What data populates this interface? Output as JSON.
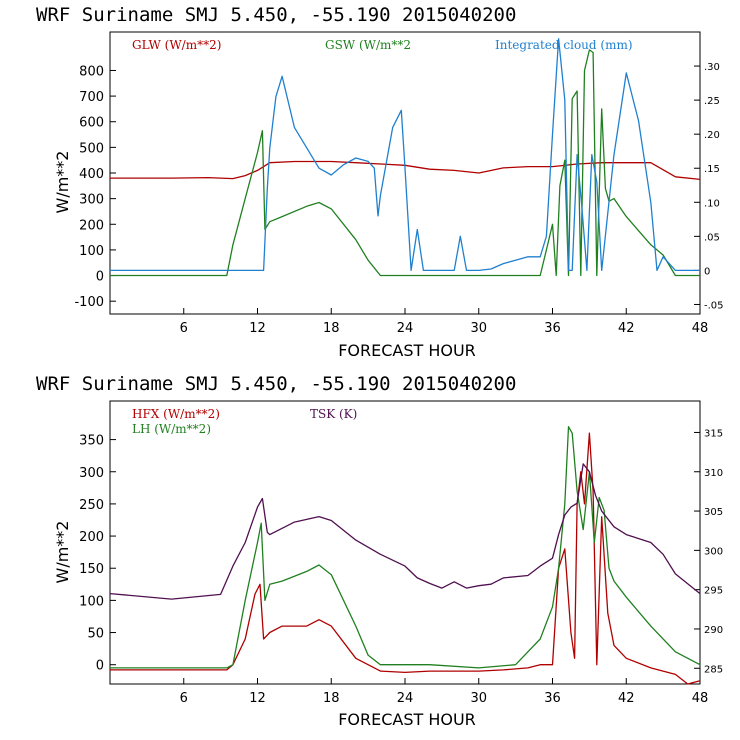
{
  "chart_data": [
    {
      "type": "line",
      "title": "WRF   Suriname SMJ   5.450, -55.190  2015040200",
      "xlabel": "FORECAST HOUR",
      "ylabel": "W/m**2",
      "xlim": [
        0,
        48
      ],
      "ylim": [
        -150,
        950
      ],
      "ylim_right": [
        -0.064,
        0.35
      ],
      "x_ticks": [
        6,
        12,
        18,
        24,
        30,
        36,
        42,
        48
      ],
      "y_ticks": [
        -100,
        0,
        100,
        200,
        300,
        400,
        500,
        600,
        700,
        800
      ],
      "y_ticks_right": [
        -0.05,
        0,
        0.05,
        0.1,
        0.15,
        0.2,
        0.25,
        0.3
      ],
      "y_tick_labels_right": [
        "-.05",
        "0",
        ".05",
        ".10",
        ".15",
        ".20",
        ".25",
        ".30"
      ],
      "grid": false,
      "legend": "top",
      "series": [
        {
          "name": "GLW (W/m**2",
          "color": "#b00000",
          "axis": "left",
          "x": [
            0,
            5,
            8,
            10,
            11,
            12,
            13,
            15,
            18,
            20,
            22,
            24,
            26,
            28,
            30,
            32,
            34,
            36,
            38,
            40,
            42,
            44,
            46,
            48
          ],
          "y": [
            380,
            380,
            382,
            378,
            390,
            410,
            440,
            445,
            445,
            440,
            435,
            430,
            415,
            410,
            400,
            420,
            425,
            425,
            435,
            440,
            440,
            440,
            385,
            375
          ]
        },
        {
          "name": "GSW (W/m**2",
          "color": "#208020",
          "axis": "left",
          "x": [
            0,
            9.5,
            10,
            11,
            12,
            12.4,
            12.6,
            13,
            14,
            16,
            17,
            18,
            20,
            21,
            22,
            35,
            35.5,
            36,
            36.3,
            36.6,
            37,
            37.3,
            37.6,
            38,
            38.3,
            38.6,
            39,
            39.3,
            39.6,
            40,
            40.3,
            40.6,
            41,
            42,
            44,
            45,
            46,
            48
          ],
          "y": [
            0,
            0,
            120,
            300,
            480,
            565,
            180,
            210,
            230,
            270,
            285,
            260,
            140,
            60,
            0,
            0,
            100,
            200,
            0,
            350,
            450,
            0,
            690,
            720,
            0,
            800,
            880,
            870,
            0,
            650,
            340,
            290,
            300,
            230,
            120,
            80,
            0,
            0
          ]
        },
        {
          "name": "Integrated cloud (mm)",
          "color": "#2080d0",
          "axis": "right",
          "x": [
            0,
            12.5,
            12.8,
            13,
            13.5,
            14,
            15,
            16,
            17,
            18,
            19,
            20,
            21,
            21.5,
            21.8,
            22,
            23,
            23.7,
            24,
            24.5,
            25,
            25.5,
            26,
            28,
            28.5,
            29,
            30,
            31,
            32,
            33,
            34,
            35,
            35.5,
            36,
            36.5,
            37,
            37.3,
            37.6,
            38,
            38.4,
            38.8,
            39.2,
            39.6,
            40,
            41,
            42,
            43,
            44,
            44.5,
            45,
            46,
            48
          ],
          "y": [
            0,
            0,
            0.12,
            0.18,
            0.255,
            0.285,
            0.21,
            0.18,
            0.15,
            0.14,
            0.155,
            0.165,
            0.16,
            0.15,
            0.08,
            0.11,
            0.21,
            0.235,
            0.15,
            0.0,
            0.06,
            0.0,
            0.0,
            0.0,
            0.05,
            0.0,
            0.0,
            0.002,
            0.01,
            0.015,
            0.02,
            0.02,
            0.05,
            0.2,
            0.34,
            0.25,
            0.0,
            0.0,
            0.17,
            0.09,
            0.0,
            0.17,
            0.13,
            0.0,
            0.17,
            0.29,
            0.22,
            0.1,
            0.0,
            0.02,
            0.0,
            0.0
          ]
        }
      ]
    },
    {
      "type": "line",
      "title": "WRF   Suriname SMJ   5.450, -55.190  2015040200",
      "xlabel": "FORECAST HOUR",
      "ylabel": "W/m**2",
      "xlim": [
        0,
        48
      ],
      "ylim": [
        -30,
        410
      ],
      "ylim_right": [
        283,
        319
      ],
      "x_ticks": [
        6,
        12,
        18,
        24,
        30,
        36,
        42,
        48
      ],
      "y_ticks": [
        0,
        50,
        100,
        150,
        200,
        250,
        300,
        350
      ],
      "y_ticks_right": [
        285,
        290,
        295,
        300,
        305,
        310,
        315
      ],
      "y_tick_labels_right": [
        "285",
        "290",
        "295",
        "300",
        "305",
        "310",
        "315"
      ],
      "grid": false,
      "legend": "top-left",
      "series": [
        {
          "name": "HFX (W/m**2)",
          "color": "#b00000",
          "axis": "left",
          "x": [
            0,
            9.5,
            10,
            11,
            11.8,
            12.2,
            12.5,
            13,
            14,
            16,
            17,
            18,
            20,
            22,
            24,
            26,
            28,
            30,
            32,
            34,
            35,
            36,
            36.5,
            37,
            37.5,
            37.8,
            38,
            38.3,
            38.6,
            39,
            39.3,
            39.6,
            40,
            40.5,
            41,
            42,
            44,
            46,
            47,
            48
          ],
          "y": [
            -8,
            -8,
            0,
            40,
            110,
            125,
            40,
            50,
            60,
            60,
            70,
            60,
            10,
            -10,
            -12,
            -10,
            -10,
            -10,
            -8,
            -5,
            0,
            0,
            150,
            180,
            50,
            10,
            250,
            300,
            250,
            360,
            270,
            0,
            230,
            80,
            30,
            10,
            -5,
            -15,
            -30,
            -25
          ]
        },
        {
          "name": "LH  (W/m**2)",
          "color": "#208020",
          "axis": "left",
          "x": [
            0,
            9.5,
            10,
            11,
            12,
            12.3,
            12.6,
            13,
            14,
            16,
            17,
            18,
            20,
            21,
            22,
            26,
            30,
            33,
            34,
            35,
            36,
            36.5,
            37,
            37.3,
            37.6,
            38,
            38.5,
            39,
            39.4,
            39.8,
            40.2,
            40.6,
            41,
            42,
            44,
            46,
            48
          ],
          "y": [
            -5,
            -5,
            0,
            100,
            190,
            220,
            100,
            125,
            130,
            145,
            155,
            140,
            60,
            15,
            0,
            0,
            -5,
            0,
            20,
            40,
            90,
            150,
            250,
            370,
            360,
            270,
            210,
            300,
            190,
            260,
            240,
            150,
            130,
            105,
            60,
            20,
            0
          ]
        },
        {
          "name": "TSK (K)",
          "color": "#501050",
          "axis": "right",
          "x": [
            0,
            5,
            9,
            10,
            11,
            12,
            12.4,
            12.8,
            13,
            15,
            17,
            18,
            20,
            22,
            24,
            25,
            26,
            27,
            28,
            29,
            30,
            31,
            32,
            34,
            35,
            36,
            36.5,
            37,
            37.5,
            38,
            38.5,
            39,
            39.5,
            40,
            41,
            42,
            44,
            45,
            46,
            48
          ],
          "y": [
            294.5,
            293.8,
            294.4,
            298,
            301,
            305.5,
            306.6,
            302.3,
            302,
            303.6,
            304.3,
            303.8,
            301.3,
            299.5,
            298,
            296.5,
            295.8,
            295.2,
            296,
            295.2,
            295.5,
            295.7,
            296.5,
            296.8,
            298,
            299,
            302,
            304.5,
            305.5,
            306,
            311,
            310,
            307,
            305,
            303,
            302,
            301,
            299.5,
            297,
            294.5
          ]
        }
      ]
    }
  ],
  "panels": [
    {
      "legend": [
        "GLW (W/m**2)",
        "GSW (W/m**2",
        "Integrated cloud (mm)"
      ]
    },
    {
      "legend": [
        "HFX (W/m**2)",
        "TSK (K)",
        "LH  (W/m**2)"
      ]
    }
  ]
}
